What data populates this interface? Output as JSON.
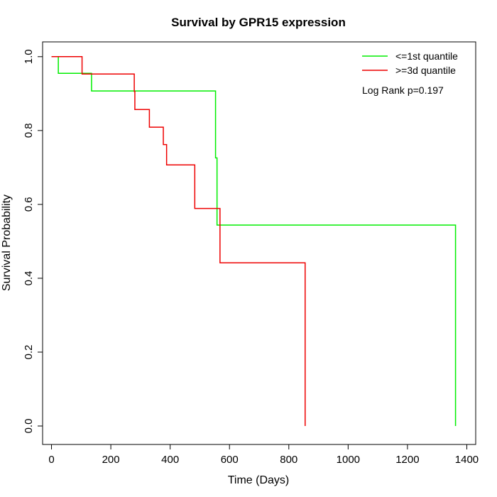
{
  "chart_data": {
    "type": "line",
    "title": "Survival by GPR15 expression",
    "xlabel": "Time (Days)",
    "ylabel": "Survival Probability",
    "xlim": [
      -30,
      1430
    ],
    "ylim": [
      -0.05,
      1.04
    ],
    "xticks": [
      0,
      200,
      400,
      600,
      800,
      1000,
      1200,
      1400
    ],
    "yticks": [
      0.0,
      0.2,
      0.4,
      0.6,
      0.8,
      1.0
    ],
    "xtick_labels": [
      "0",
      "200",
      "400",
      "600",
      "800",
      "1000",
      "1200",
      "1400"
    ],
    "ytick_labels": [
      "0.0",
      "0.2",
      "0.4",
      "0.6",
      "0.8",
      "1.0"
    ],
    "grid": false,
    "legend_position": "top-right",
    "annotation": "Log Rank p=0.197",
    "series": [
      {
        "name": "<=1st quantile",
        "color": "#00ee00",
        "steps": [
          [
            0,
            1.0
          ],
          [
            23,
            0.955
          ],
          [
            135,
            0.907
          ],
          [
            553,
            0.726
          ],
          [
            558,
            0.544
          ],
          [
            1362,
            0.0
          ]
        ],
        "end_x": 1362
      },
      {
        "name": ">=3d quantile",
        "color": "#ee0000",
        "steps": [
          [
            0,
            1.0
          ],
          [
            103,
            0.953
          ],
          [
            279,
            0.906
          ],
          [
            281,
            0.857
          ],
          [
            330,
            0.809
          ],
          [
            377,
            0.762
          ],
          [
            388,
            0.707
          ],
          [
            483,
            0.589
          ],
          [
            568,
            0.442
          ],
          [
            855,
            0.0
          ]
        ],
        "end_x": 855
      }
    ]
  }
}
